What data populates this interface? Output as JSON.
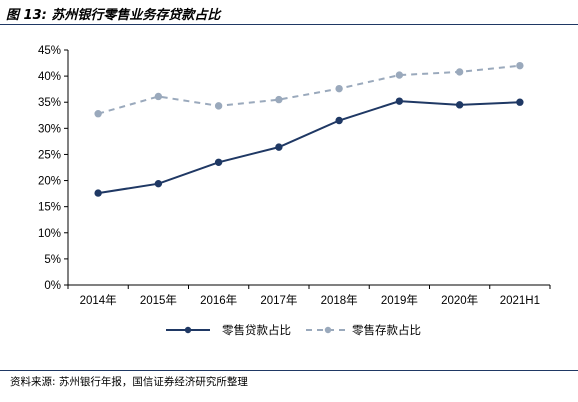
{
  "header": {
    "title": "图 13:  苏州银行零售业务存贷款占比"
  },
  "footer": {
    "source": "资料来源:  苏州银行年报，国信证券经济研究所整理"
  },
  "colors": {
    "loan": "#1f3864",
    "deposit": "#9aa9bc",
    "rule": "#1f3864"
  },
  "chart_data": {
    "type": "line",
    "categories": [
      "2014年",
      "2015年",
      "2016年",
      "2017年",
      "2018年",
      "2019年",
      "2020年",
      "2021H1"
    ],
    "series": [
      {
        "name": "零售贷款占比",
        "values": [
          17.6,
          19.4,
          23.5,
          26.4,
          31.5,
          35.2,
          34.5,
          35.0
        ],
        "style": "solid"
      },
      {
        "name": "零售存款占比",
        "values": [
          32.8,
          36.1,
          34.3,
          35.5,
          37.6,
          40.2,
          40.8,
          42.0
        ],
        "style": "dashed"
      }
    ],
    "ylim": [
      0,
      45
    ],
    "yticks": [
      "0%",
      "5%",
      "10%",
      "15%",
      "20%",
      "25%",
      "30%",
      "35%",
      "40%",
      "45%"
    ],
    "ytick_values": [
      0,
      5,
      10,
      15,
      20,
      25,
      30,
      35,
      40,
      45
    ],
    "grid": false,
    "legend_position": "bottom"
  }
}
